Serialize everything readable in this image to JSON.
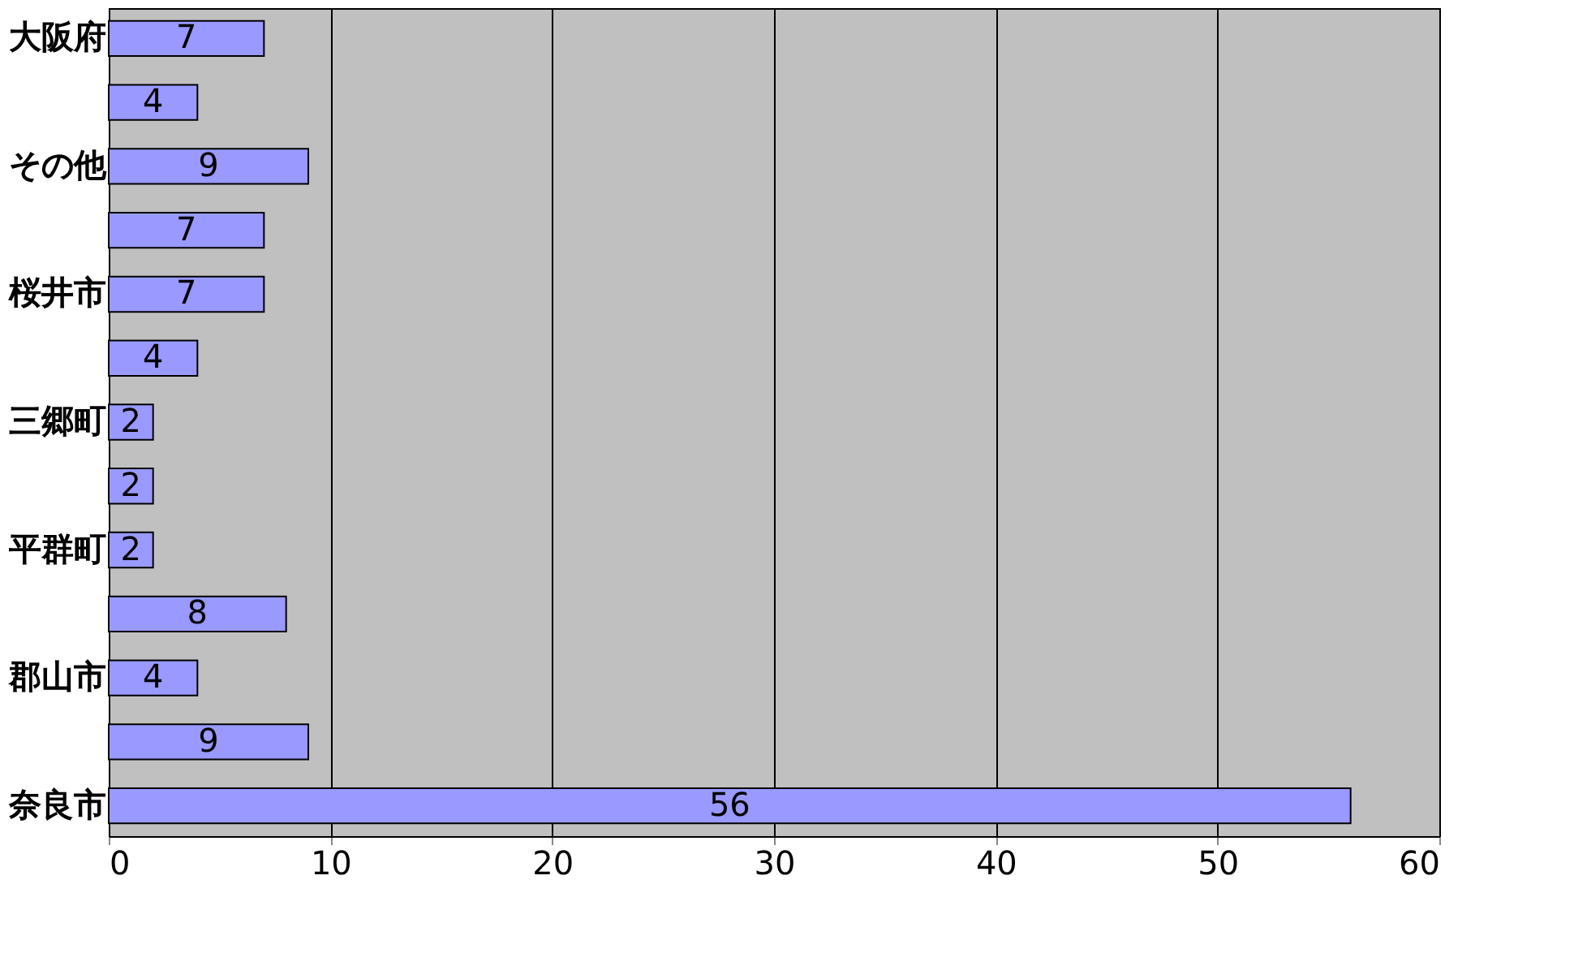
{
  "chart_data": {
    "type": "bar",
    "orientation": "horizontal",
    "categories": [
      "大阪府",
      null,
      "その他",
      null,
      "桜井市",
      null,
      "三郷町",
      null,
      "平群町",
      null,
      "郡山市",
      null,
      "奈良市"
    ],
    "values": [
      7,
      4,
      9,
      7,
      7,
      4,
      2,
      2,
      2,
      8,
      4,
      9,
      56
    ],
    "color": "#9999ff",
    "xlim": [
      0,
      60
    ],
    "xticks": [
      0,
      10,
      20,
      30,
      40,
      50,
      60
    ],
    "grid": "x",
    "data_labels": true
  }
}
